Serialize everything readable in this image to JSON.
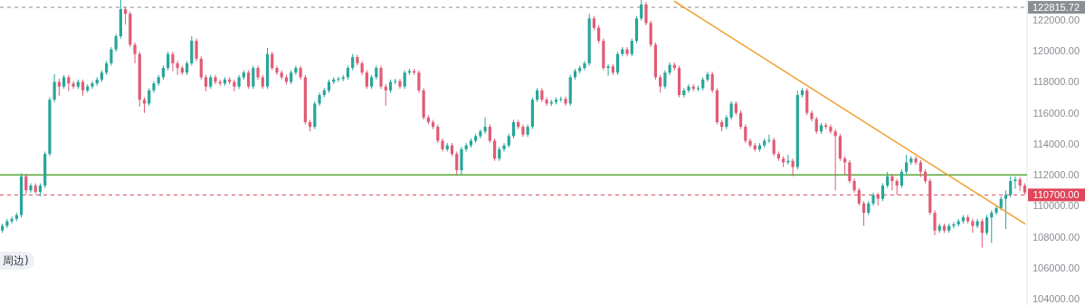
{
  "chart_data": {
    "type": "candlestick",
    "categories": [
      null,
      null,
      null,
      null,
      null,
      null,
      null,
      null,
      null,
      null,
      null,
      null,
      null,
      null,
      null,
      null,
      null,
      null,
      null,
      null,
      null,
      null,
      null,
      null,
      null,
      null,
      null,
      null,
      null,
      null,
      null,
      null,
      null,
      null,
      null,
      null,
      null,
      null,
      null,
      null,
      null,
      null,
      null,
      null,
      null,
      null,
      null,
      null,
      null,
      null,
      null,
      null,
      null,
      null,
      null,
      null,
      null,
      null,
      null,
      null,
      null,
      null,
      null,
      null,
      null,
      null,
      null,
      null,
      null,
      null,
      null,
      null,
      null,
      null,
      null,
      null,
      null,
      null,
      null,
      null,
      null,
      null,
      null,
      null,
      null,
      null,
      null,
      null,
      null,
      null,
      null,
      null,
      null,
      null,
      null,
      null,
      null,
      null,
      null,
      null,
      null,
      null,
      null,
      null,
      null,
      null,
      null,
      null,
      null,
      null,
      null,
      null,
      null,
      null,
      null,
      null,
      null,
      null,
      null,
      null,
      null,
      null,
      null,
      null,
      null,
      null,
      null,
      null,
      null,
      null,
      null,
      null,
      null,
      null,
      null,
      null,
      null,
      null,
      null,
      null,
      null,
      null,
      null,
      null,
      null,
      null,
      null,
      null,
      null,
      null,
      null,
      null,
      null,
      null,
      null,
      null,
      null,
      null,
      null,
      null,
      null,
      null,
      null,
      null,
      null,
      null,
      null,
      null,
      null,
      null,
      null,
      null,
      null,
      null,
      null,
      null,
      null,
      null,
      null,
      null,
      null,
      null,
      null,
      null,
      null,
      null,
      null,
      null,
      null,
      null,
      null,
      null,
      null,
      null,
      null,
      null,
      null,
      null,
      null,
      null,
      null,
      null,
      null,
      null,
      null,
      null,
      null,
      null,
      null,
      null,
      null,
      null,
      null,
      null,
      null,
      null,
      null
    ],
    "ohlc": [
      [
        108400,
        108850,
        108250,
        108700
      ],
      [
        108700,
        109150,
        108550,
        109000
      ],
      [
        109000,
        109300,
        108850,
        109150
      ],
      [
        109150,
        109550,
        109000,
        109400
      ],
      [
        109400,
        112100,
        109250,
        111900
      ],
      [
        111900,
        112050,
        110700,
        111000
      ],
      [
        111000,
        111450,
        110850,
        111300
      ],
      [
        111300,
        111450,
        110750,
        110900
      ],
      [
        110900,
        111450,
        110600,
        111300
      ],
      [
        111300,
        113500,
        111150,
        113350
      ],
      [
        113350,
        117000,
        113200,
        116850
      ],
      [
        116850,
        118500,
        116700,
        118000
      ],
      [
        118000,
        118200,
        117100,
        117700
      ],
      [
        117700,
        118450,
        117550,
        118300
      ],
      [
        118300,
        118450,
        117400,
        117900
      ],
      [
        117900,
        118050,
        117550,
        117700
      ],
      [
        117700,
        118150,
        117550,
        118000
      ],
      [
        118000,
        118150,
        117100,
        117450
      ],
      [
        117450,
        117850,
        117300,
        117700
      ],
      [
        117700,
        118050,
        117550,
        117900
      ],
      [
        117900,
        118300,
        117750,
        118150
      ],
      [
        118150,
        118750,
        118000,
        118600
      ],
      [
        118600,
        119350,
        118450,
        119200
      ],
      [
        119200,
        120250,
        119050,
        120100
      ],
      [
        120100,
        121100,
        119950,
        120950
      ],
      [
        120950,
        123300,
        120800,
        122700
      ],
      [
        122700,
        122850,
        121700,
        122400
      ],
      [
        122400,
        122550,
        120250,
        120400
      ],
      [
        120400,
        120550,
        119200,
        119800
      ],
      [
        119800,
        119950,
        116400,
        116850
      ],
      [
        116850,
        117000,
        116000,
        116600
      ],
      [
        116600,
        117600,
        116450,
        117450
      ],
      [
        117450,
        118050,
        117300,
        117900
      ],
      [
        117900,
        118450,
        117750,
        118300
      ],
      [
        118300,
        119050,
        118150,
        118900
      ],
      [
        118900,
        119950,
        118750,
        119800
      ],
      [
        119800,
        119950,
        118700,
        119200
      ],
      [
        119200,
        119350,
        118450,
        118900
      ],
      [
        118900,
        119050,
        118450,
        118600
      ],
      [
        118600,
        119350,
        118450,
        119200
      ],
      [
        119200,
        120950,
        119050,
        120650
      ],
      [
        120650,
        120800,
        119350,
        119500
      ],
      [
        119500,
        119650,
        118150,
        118300
      ],
      [
        118300,
        118450,
        117400,
        117700
      ],
      [
        117700,
        118450,
        117550,
        118300
      ],
      [
        118300,
        118450,
        117850,
        118000
      ],
      [
        118000,
        118150,
        117750,
        117900
      ],
      [
        117900,
        118300,
        117750,
        118150
      ],
      [
        118150,
        118300,
        117850,
        118000
      ],
      [
        118000,
        118150,
        117400,
        117700
      ],
      [
        117700,
        118450,
        117550,
        118300
      ],
      [
        118300,
        118750,
        118150,
        118600
      ],
      [
        118600,
        118750,
        117550,
        117700
      ],
      [
        117700,
        119050,
        117550,
        118900
      ],
      [
        118900,
        119050,
        118150,
        118300
      ],
      [
        118300,
        118450,
        117550,
        117700
      ],
      [
        117700,
        120200,
        117550,
        119800
      ],
      [
        119800,
        119950,
        118750,
        118900
      ],
      [
        118900,
        119050,
        118450,
        118600
      ],
      [
        118600,
        118750,
        118150,
        118300
      ],
      [
        118300,
        118450,
        117850,
        118000
      ],
      [
        118000,
        118750,
        117850,
        118600
      ],
      [
        118600,
        119050,
        118450,
        118900
      ],
      [
        118900,
        119050,
        118150,
        118300
      ],
      [
        118300,
        118450,
        115250,
        115400
      ],
      [
        115400,
        115550,
        114800,
        115100
      ],
      [
        115100,
        116750,
        114950,
        116600
      ],
      [
        116600,
        117300,
        116450,
        117150
      ],
      [
        117150,
        117600,
        117000,
        117450
      ],
      [
        117450,
        118150,
        117300,
        118000
      ],
      [
        118000,
        118300,
        117850,
        118150
      ],
      [
        118150,
        118350,
        118000,
        118200
      ],
      [
        118200,
        118450,
        118050,
        118300
      ],
      [
        118300,
        119050,
        118150,
        118900
      ],
      [
        118900,
        119800,
        118750,
        119600
      ],
      [
        119600,
        119750,
        119050,
        119200
      ],
      [
        119200,
        119350,
        118450,
        118600
      ],
      [
        118600,
        118750,
        117550,
        117700
      ],
      [
        117700,
        118450,
        117550,
        118300
      ],
      [
        118300,
        119050,
        118150,
        118900
      ],
      [
        118900,
        119050,
        117550,
        117700
      ],
      [
        117700,
        117850,
        116450,
        117450
      ],
      [
        117450,
        118150,
        117300,
        118000
      ],
      [
        118000,
        118200,
        117850,
        118050
      ],
      [
        118050,
        118200,
        117550,
        117700
      ],
      [
        117700,
        118750,
        117550,
        118600
      ],
      [
        118600,
        118850,
        118450,
        118700
      ],
      [
        118700,
        118850,
        118450,
        118600
      ],
      [
        118600,
        118750,
        117300,
        117450
      ],
      [
        117450,
        117600,
        115550,
        115700
      ],
      [
        115700,
        115850,
        115250,
        115400
      ],
      [
        115400,
        115550,
        114950,
        115100
      ],
      [
        115100,
        115250,
        114050,
        114200
      ],
      [
        114200,
        114350,
        113500,
        113650
      ],
      [
        113650,
        114050,
        113500,
        113900
      ],
      [
        113900,
        114050,
        113200,
        113350
      ],
      [
        113350,
        113500,
        112000,
        112300
      ],
      [
        112300,
        113800,
        112000,
        113650
      ],
      [
        113650,
        114050,
        113500,
        113900
      ],
      [
        113900,
        114350,
        113750,
        114200
      ],
      [
        114200,
        114650,
        114050,
        114500
      ],
      [
        114500,
        114950,
        114350,
        114800
      ],
      [
        114800,
        115700,
        114650,
        115100
      ],
      [
        115100,
        115250,
        114050,
        114200
      ],
      [
        114200,
        114350,
        112900,
        113050
      ],
      [
        113050,
        113800,
        112900,
        113650
      ],
      [
        113650,
        114050,
        113500,
        113900
      ],
      [
        113900,
        114650,
        113750,
        114500
      ],
      [
        114500,
        115550,
        114350,
        115400
      ],
      [
        115400,
        115550,
        114950,
        115100
      ],
      [
        115100,
        115250,
        114450,
        114600
      ],
      [
        114600,
        115250,
        114450,
        115100
      ],
      [
        115100,
        117000,
        114950,
        116850
      ],
      [
        116850,
        117600,
        116700,
        117450
      ],
      [
        117450,
        117600,
        116700,
        116850
      ],
      [
        116850,
        117000,
        116450,
        116600
      ],
      [
        116600,
        116850,
        116450,
        116700
      ],
      [
        116700,
        117000,
        116550,
        116850
      ],
      [
        116850,
        117050,
        116700,
        116900
      ],
      [
        116900,
        117050,
        116450,
        116600
      ],
      [
        116600,
        118450,
        116450,
        118300
      ],
      [
        118300,
        118850,
        118150,
        118700
      ],
      [
        118700,
        119050,
        118550,
        118900
      ],
      [
        118900,
        119350,
        118750,
        119200
      ],
      [
        119200,
        122400,
        119050,
        122100
      ],
      [
        122100,
        122250,
        121350,
        121500
      ],
      [
        121500,
        121650,
        120500,
        120650
      ],
      [
        120650,
        120800,
        118750,
        118900
      ],
      [
        118900,
        119150,
        118400,
        119000
      ],
      [
        119000,
        119150,
        118450,
        118600
      ],
      [
        118600,
        119950,
        118450,
        119800
      ],
      [
        119800,
        120250,
        119650,
        120100
      ],
      [
        120100,
        120250,
        119650,
        119800
      ],
      [
        119800,
        120800,
        119650,
        120650
      ],
      [
        120650,
        122250,
        120500,
        122100
      ],
      [
        122100,
        123300,
        121950,
        123000
      ],
      [
        123000,
        123150,
        121650,
        121800
      ],
      [
        121800,
        121950,
        120250,
        120400
      ],
      [
        120400,
        120550,
        118150,
        118300
      ],
      [
        118300,
        118450,
        117300,
        117700
      ],
      [
        117700,
        118750,
        117550,
        118600
      ],
      [
        118600,
        119250,
        118450,
        119100
      ],
      [
        119100,
        119250,
        118750,
        118900
      ],
      [
        118900,
        119050,
        117000,
        117150
      ],
      [
        117150,
        117600,
        117000,
        117450
      ],
      [
        117450,
        117850,
        117300,
        117700
      ],
      [
        117700,
        117850,
        117400,
        117550
      ],
      [
        117550,
        117750,
        117400,
        117600
      ],
      [
        117600,
        118300,
        117450,
        118150
      ],
      [
        118150,
        118650,
        118000,
        118500
      ],
      [
        118500,
        118650,
        117300,
        117450
      ],
      [
        117450,
        117600,
        115250,
        115400
      ],
      [
        115400,
        115550,
        114800,
        115100
      ],
      [
        115100,
        115850,
        114950,
        115700
      ],
      [
        115700,
        116750,
        115550,
        116600
      ],
      [
        116600,
        116750,
        115850,
        116000
      ],
      [
        116000,
        116150,
        114950,
        115100
      ],
      [
        115100,
        115250,
        114050,
        114200
      ],
      [
        114200,
        114350,
        113750,
        113900
      ],
      [
        113900,
        114050,
        113500,
        113650
      ],
      [
        113650,
        114050,
        113500,
        113900
      ],
      [
        113900,
        114350,
        113750,
        114200
      ],
      [
        114200,
        114600,
        114050,
        114250
      ],
      [
        114250,
        114400,
        113200,
        113350
      ],
      [
        113350,
        113500,
        112900,
        113050
      ],
      [
        113050,
        113200,
        112500,
        112800
      ],
      [
        112800,
        113300,
        112650,
        112900
      ],
      [
        112900,
        113050,
        111900,
        112500
      ],
      [
        112500,
        117450,
        112350,
        117150
      ],
      [
        117150,
        117600,
        117000,
        117450
      ],
      [
        117450,
        117600,
        115850,
        116000
      ],
      [
        116000,
        116150,
        115450,
        115600
      ],
      [
        115600,
        115750,
        114650,
        114800
      ],
      [
        114800,
        115350,
        114650,
        115200
      ],
      [
        115200,
        115350,
        114950,
        115100
      ],
      [
        115100,
        115250,
        114650,
        114800
      ],
      [
        114800,
        114950,
        111000,
        114500
      ],
      [
        114500,
        114650,
        112900,
        113050
      ],
      [
        113050,
        113200,
        112000,
        112800
      ],
      [
        112800,
        112950,
        111450,
        111600
      ],
      [
        111600,
        111750,
        110850,
        111000
      ],
      [
        111000,
        111150,
        110000,
        110150
      ],
      [
        110150,
        110300,
        108700,
        109550
      ],
      [
        109550,
        110300,
        109400,
        110150
      ],
      [
        110150,
        110850,
        110000,
        110700
      ],
      [
        110700,
        110850,
        110000,
        110450
      ],
      [
        110450,
        111450,
        110300,
        111300
      ],
      [
        111300,
        112200,
        111150,
        111900
      ],
      [
        111900,
        112050,
        111000,
        111600
      ],
      [
        111600,
        111750,
        110700,
        111300
      ],
      [
        111300,
        112350,
        111150,
        112200
      ],
      [
        112200,
        113300,
        112050,
        112800
      ],
      [
        112800,
        113200,
        112650,
        113050
      ],
      [
        113050,
        113200,
        112650,
        112800
      ],
      [
        112800,
        112950,
        111850,
        112200
      ],
      [
        112200,
        112350,
        111450,
        111600
      ],
      [
        111600,
        111750,
        109400,
        109550
      ],
      [
        109550,
        109700,
        108100,
        108400
      ],
      [
        108400,
        108850,
        108250,
        108700
      ],
      [
        108700,
        108850,
        108250,
        108400
      ],
      [
        108400,
        108850,
        108250,
        108700
      ],
      [
        108700,
        108950,
        108550,
        108800
      ],
      [
        108800,
        109150,
        108650,
        109000
      ],
      [
        109000,
        109400,
        108850,
        109250
      ],
      [
        109250,
        109400,
        108850,
        109000
      ],
      [
        109000,
        109150,
        108250,
        108700
      ],
      [
        108700,
        109150,
        108550,
        109000
      ],
      [
        109000,
        109150,
        107300,
        108250
      ],
      [
        108250,
        109400,
        108100,
        109250
      ],
      [
        109250,
        109700,
        107600,
        109550
      ],
      [
        109550,
        110000,
        109400,
        109850
      ],
      [
        109850,
        110600,
        109700,
        110450
      ],
      [
        110450,
        111000,
        108500,
        110700
      ],
      [
        110700,
        111900,
        110550,
        111600
      ],
      [
        111600,
        111900,
        111100,
        111700
      ],
      [
        111700,
        111850,
        110950,
        111300
      ],
      [
        111300,
        111450,
        110700,
        110850
      ]
    ],
    "series": [
      {
        "type": "line",
        "color": "#f0a030",
        "values": [
          null,
          null,
          null,
          null,
          null,
          null,
          null,
          null,
          null,
          null,
          null,
          null,
          null,
          null,
          null,
          null,
          null,
          null,
          null,
          null,
          null,
          null,
          null,
          null,
          null,
          null,
          null,
          null,
          null,
          null,
          null,
          null,
          null,
          null,
          null,
          null,
          null,
          null,
          null,
          null,
          null,
          null,
          null,
          null,
          null,
          null,
          null,
          null,
          null,
          null,
          null,
          null,
          null,
          null,
          null,
          null,
          null,
          null,
          null,
          null,
          null,
          null,
          null,
          null,
          null,
          null,
          null,
          null,
          null,
          null,
          null,
          null,
          null,
          null,
          null,
          null,
          null,
          null,
          null,
          null,
          null,
          null,
          null,
          null,
          null,
          null,
          null,
          null,
          null,
          null,
          null,
          null,
          null,
          null,
          null,
          null,
          null,
          null,
          null,
          null,
          null,
          null,
          null,
          null,
          null,
          null,
          null,
          null,
          null,
          null,
          null,
          null,
          null,
          null,
          null,
          null,
          null,
          null,
          null,
          null,
          null,
          null,
          null,
          null,
          null,
          null,
          null,
          null,
          null,
          null,
          null,
          null,
          null,
          null,
          null,
          null,
          null,
          null,
          null,
          null,
          null,
          null,
          123200,
          null,
          null,
          null,
          null,
          null,
          null,
          null,
          null,
          null,
          null,
          null,
          null,
          null,
          null,
          null,
          null,
          null,
          null,
          null,
          null,
          null,
          null,
          null,
          null,
          null,
          null,
          null,
          null,
          null,
          null,
          null,
          null,
          null,
          null,
          null,
          null,
          null,
          null,
          null,
          null,
          null,
          null,
          null,
          null,
          null,
          null,
          null,
          null,
          null,
          null,
          null,
          null,
          null,
          null,
          null,
          null,
          null,
          null,
          null,
          null,
          null,
          null,
          null,
          null,
          null,
          null,
          null,
          null,
          null,
          null,
          null,
          null,
          null,
          108840
        ]
      }
    ],
    "ylim": [
      103590,
      123290
    ],
    "yticks": [
      {
        "value": 104000,
        "label": "104000.00"
      },
      {
        "value": 106000,
        "label": "106000.00"
      },
      {
        "value": 108000,
        "label": "108000.00"
      },
      {
        "value": 110000,
        "label": "110000.00"
      },
      {
        "value": 112000,
        "label": "112000.00"
      },
      {
        "value": 114000,
        "label": "114000.00"
      },
      {
        "value": 116000,
        "label": "116000.00"
      },
      {
        "value": 118000,
        "label": "118000.00"
      },
      {
        "value": 120000,
        "label": "120000.00"
      },
      {
        "value": 122000,
        "label": "122000.00"
      }
    ],
    "tick_labels": "y",
    "ref_lines": [
      {
        "axis": "y",
        "value": 112000,
        "color": "#5aa83a",
        "line_style": "solid"
      },
      {
        "axis": "y",
        "value": 110700,
        "label": "110700.00",
        "color": "#e0455a",
        "line_style": "dashed"
      },
      {
        "axis": "y",
        "value": 122815.72,
        "label": "122815.72",
        "color": "#8a8d93",
        "line_style": "dashed"
      }
    ],
    "annotations": [
      "周边)"
    ]
  }
}
